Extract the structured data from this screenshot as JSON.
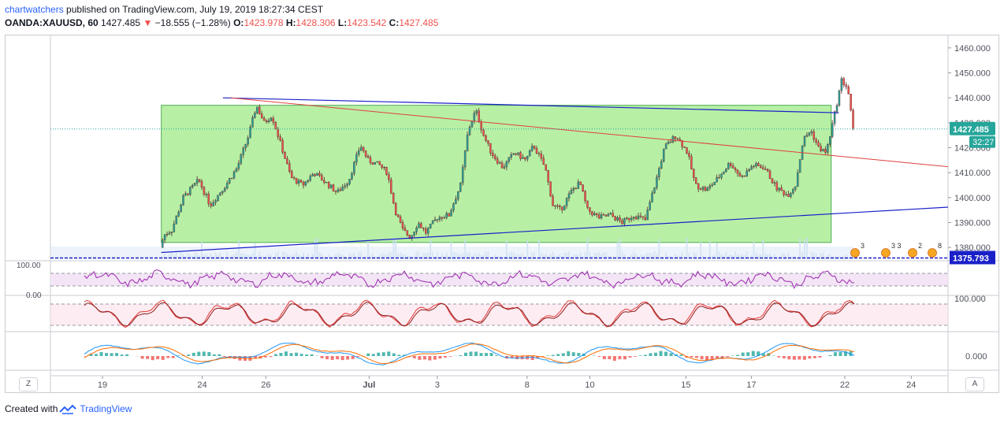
{
  "header": {
    "publisher": "chartwatchers",
    "published_text": "published on TradingView.com, July 19, 2019 18:27:34 CEST",
    "symbol": "OANDA:XAUUSD, 60",
    "last": "1427.485",
    "change_arrow": "▼",
    "change": "−18.555 (−1.28%)",
    "o_label": "O:",
    "o": "1423.978",
    "h_label": "H:",
    "h": "1428.306",
    "l_label": "L:",
    "l": "1423.542",
    "c_label": "C:",
    "c": "1427.485"
  },
  "footer": {
    "created_with": "Created with",
    "brand": "TradingView"
  },
  "buttons": {
    "zoom": "Z",
    "auto": "A"
  },
  "colors": {
    "up": "#26a69a",
    "down": "#ef5350",
    "rect_fill": "#b7f0a5",
    "rect_stroke": "#4caf50",
    "channel": "#1a20c8",
    "trend_red": "#e04040",
    "rsi": "#9c27b0",
    "stoch_k": "#e53935",
    "stoch_d": "#8d1c1c",
    "macd": "#2196f3",
    "signal": "#ff6d00",
    "price_badge": "#26a69a",
    "blue_badge": "#1a20c8"
  },
  "chart_data": {
    "type": "candlestick",
    "symbol": "OANDA:XAUUSD",
    "timeframe": "60",
    "price_axis": {
      "range": [
        1375,
        1465
      ],
      "ticks": [
        "1460.000",
        "1450.000",
        "1440.000",
        "1430.000",
        "1420.000",
        "1410.000",
        "1400.000",
        "1390.000",
        "1380.000"
      ]
    },
    "time_axis": {
      "labels": [
        "19",
        "24",
        "26",
        "Jul",
        "3",
        "8",
        "10",
        "15",
        "17",
        "22",
        "24"
      ],
      "bold": [
        "Jul"
      ],
      "label_positions": [
        0.058,
        0.169,
        0.24,
        0.355,
        0.431,
        0.531,
        0.601,
        0.708,
        0.781,
        0.885,
        0.959
      ]
    },
    "last_price": "1427.485",
    "countdown": "32:27",
    "horizontal_line": "1375.793",
    "price_path": [
      [
        0.1,
        1380
      ],
      [
        0.105,
        1385
      ],
      [
        0.115,
        1387
      ],
      [
        0.13,
        1400
      ],
      [
        0.15,
        1407
      ],
      [
        0.165,
        1397
      ],
      [
        0.185,
        1405
      ],
      [
        0.2,
        1412
      ],
      [
        0.215,
        1425
      ],
      [
        0.225,
        1437
      ],
      [
        0.235,
        1430
      ],
      [
        0.245,
        1433
      ],
      [
        0.255,
        1423
      ],
      [
        0.27,
        1408
      ],
      [
        0.285,
        1405
      ],
      [
        0.3,
        1410
      ],
      [
        0.315,
        1406
      ],
      [
        0.33,
        1402
      ],
      [
        0.345,
        1407
      ],
      [
        0.36,
        1421
      ],
      [
        0.37,
        1415
      ],
      [
        0.385,
        1413
      ],
      [
        0.395,
        1410
      ],
      [
        0.405,
        1395
      ],
      [
        0.415,
        1387
      ],
      [
        0.425,
        1384
      ],
      [
        0.435,
        1390
      ],
      [
        0.445,
        1386
      ],
      [
        0.46,
        1392
      ],
      [
        0.475,
        1393
      ],
      [
        0.49,
        1405
      ],
      [
        0.5,
        1427
      ],
      [
        0.51,
        1435
      ],
      [
        0.52,
        1425
      ],
      [
        0.53,
        1418
      ],
      [
        0.545,
        1412
      ],
      [
        0.56,
        1418
      ],
      [
        0.575,
        1415
      ],
      [
        0.585,
        1421
      ],
      [
        0.6,
        1412
      ],
      [
        0.61,
        1397
      ],
      [
        0.62,
        1395
      ],
      [
        0.635,
        1403
      ],
      [
        0.645,
        1406
      ],
      [
        0.655,
        1395
      ],
      [
        0.67,
        1392
      ],
      [
        0.685,
        1393
      ],
      [
        0.7,
        1390
      ],
      [
        0.715,
        1393
      ],
      [
        0.73,
        1391
      ],
      [
        0.745,
        1408
      ],
      [
        0.755,
        1420
      ],
      [
        0.77,
        1425
      ],
      [
        0.785,
        1418
      ],
      [
        0.795,
        1405
      ],
      [
        0.81,
        1403
      ],
      [
        0.825,
        1408
      ],
      [
        0.84,
        1414
      ],
      [
        0.855,
        1408
      ],
      [
        0.87,
        1413
      ],
      [
        0.885,
        1412
      ],
      [
        0.9,
        1404
      ],
      [
        0.915,
        1401
      ],
      [
        0.925,
        1405
      ],
      [
        0.935,
        1423
      ],
      [
        0.945,
        1427
      ],
      [
        0.955,
        1420
      ],
      [
        0.965,
        1418
      ],
      [
        0.975,
        1432
      ],
      [
        0.985,
        1447
      ],
      [
        0.993,
        1444
      ],
      [
        1.0,
        1427
      ]
    ],
    "annotations": {
      "rectangle": {
        "x": [
          0.1,
          0.97
        ],
        "y": [
          1382,
          1437
        ]
      },
      "upper_channel": [
        [
          0.18,
          1440
        ],
        [
          0.98,
          1434
        ]
      ],
      "lower_channel": [
        [
          0.1,
          1378
        ],
        [
          1.0,
          1394
        ]
      ],
      "red_trend": [
        [
          0.19,
          1440
        ],
        [
          1.0,
          1416
        ]
      ]
    },
    "indicators": {
      "rsi_levels": [
        "100.00",
        "0.00"
      ],
      "stochastic_level": "100.000",
      "macd_level": "0.000"
    },
    "event_markers": [
      "3",
      "3 3",
      "2",
      "8"
    ]
  }
}
